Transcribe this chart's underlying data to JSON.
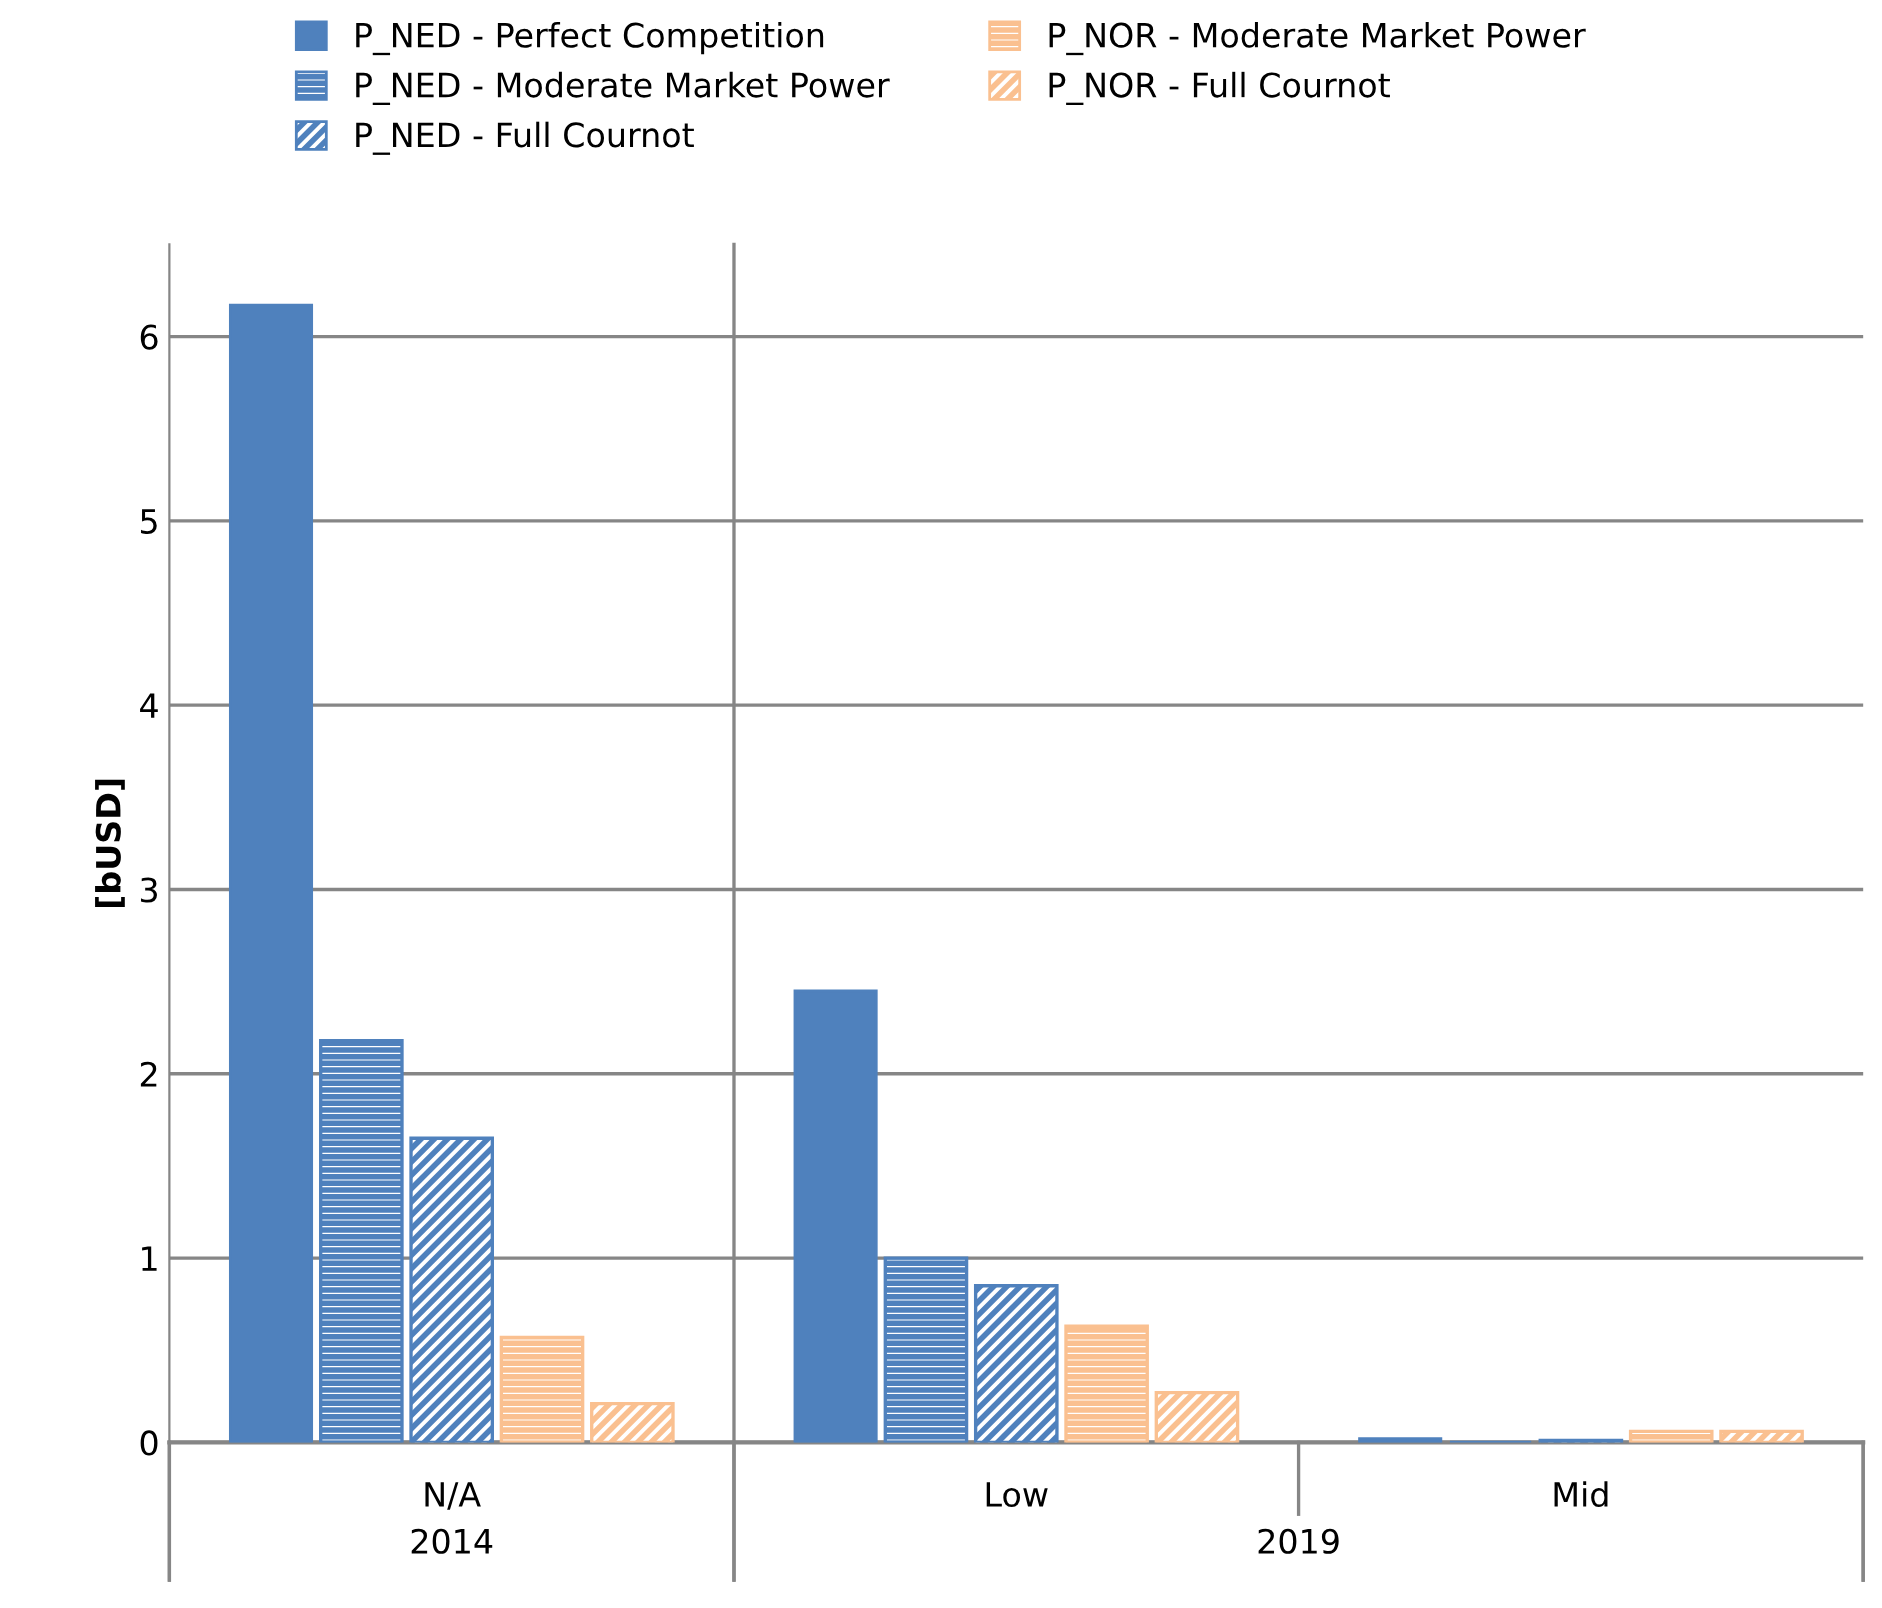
{
  "chart_data": {
    "type": "bar",
    "ylabel": "[bUSD]",
    "categories": [
      "N/A",
      "Low",
      "Mid"
    ],
    "series": [
      {
        "name": "P_NED - Perfect Competition",
        "color": "#4f81bd",
        "values": [
          6.17,
          2.45,
          0.02
        ]
      },
      {
        "name": "P_NED - Moderate Market Power",
        "color": "#4f81bd",
        "values": [
          2.18,
          1.0,
          0
        ]
      },
      {
        "name": "P_NED - Full Cournot",
        "color": "#4f81bd",
        "values": [
          1.65,
          0.85,
          0.01
        ]
      },
      {
        "name": "P_NOR - Moderate Market Power",
        "color": "#fac090",
        "values": [
          0.57,
          0.63,
          0.06
        ]
      },
      {
        "name": "P_NOR - Full Cournot",
        "color": "#fac090",
        "values": [
          0.21,
          0.27,
          0.06
        ]
      }
    ],
    "ylim": [
      0,
      6.5
    ],
    "yticks": [
      0,
      1,
      2,
      3,
      4,
      5,
      6
    ],
    "grid": "y",
    "legend": "top",
    "annotations": [
      "2014",
      "2019"
    ]
  }
}
